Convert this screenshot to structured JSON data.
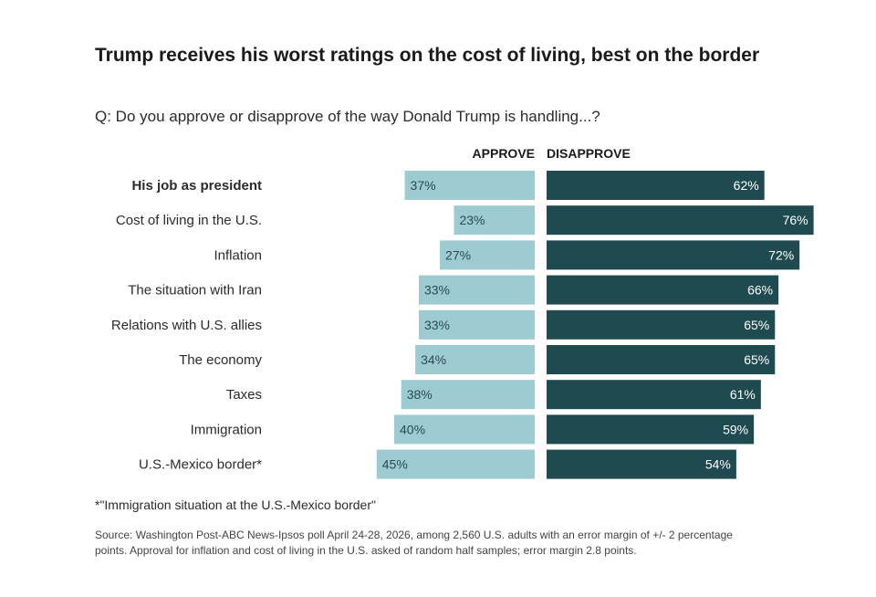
{
  "title": "Trump receives his worst ratings on the cost of living, best on the border",
  "subtitle": "Q: Do you approve or disapprove of the way Donald Trump is handling...?",
  "footnote": "*\"Immigration situation at the U.S.-Mexico border\"",
  "source": "Source: Washington Post-ABC News-Ipsos poll April 24-28, 2026, among 2,560 U.S. adults with an error margin of +/- 2 percentage points. Approval for inflation and cost of living in the U.S. asked of random half samples; error margin 2.8 points.",
  "colors": {
    "approve": "#9ccbd2",
    "disapprove": "#1f4b50",
    "approve_text": "#2a4a50",
    "disapprove_text": "#ffffff"
  },
  "chart_data": {
    "type": "bar",
    "orientation": "horizontal-diverging",
    "categories": [
      "His job as president",
      "Cost of living in the U.S.",
      "Inflation",
      "The situation with Iran",
      "Relations with U.S. allies",
      "The economy",
      "Taxes",
      "Immigration",
      "U.S.-Mexico border*"
    ],
    "bold_categories": [
      "His job as president"
    ],
    "series": [
      {
        "name": "APPROVE",
        "values": [
          37,
          23,
          27,
          33,
          33,
          34,
          38,
          40,
          45
        ]
      },
      {
        "name": "DISAPPROVE",
        "values": [
          62,
          76,
          72,
          66,
          65,
          65,
          61,
          59,
          54
        ]
      }
    ],
    "value_suffix": "%",
    "xlim": [
      0,
      100
    ]
  }
}
